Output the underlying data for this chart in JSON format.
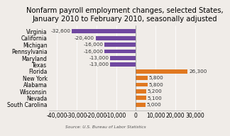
{
  "title": "Nonfarm payroll employment changes, selected States,\nJanuary 2010 to February 2010, seasonally adjusted",
  "source": "Source: U.S. Bureau of Labor Statistics",
  "categories": [
    "Virginia",
    "California",
    "Michigan",
    "Pennsylvania",
    "Maryland",
    "Texas",
    "Florida",
    "New York",
    "Alabama",
    "Wisconsin",
    "Nevada",
    "South Carolina"
  ],
  "values": [
    -32600,
    -20400,
    -16000,
    -16000,
    -13000,
    -13000,
    26300,
    5800,
    5800,
    5200,
    5100,
    5000
  ],
  "bar_colors": [
    "#7048a0",
    "#7048a0",
    "#7048a0",
    "#7048a0",
    "#7048a0",
    "#7048a0",
    "#e07820",
    "#e07820",
    "#e07820",
    "#e07820",
    "#e07820",
    "#e07820"
  ],
  "xlim": [
    -44000,
    33000
  ],
  "xticks": [
    -40000,
    -30000,
    -20000,
    -10000,
    0,
    10000,
    20000,
    30000
  ],
  "xticklabels": [
    "-40,000",
    "-30,000",
    "-20,000",
    "-10,000",
    "0",
    "10,000",
    "20,000",
    "30,000"
  ],
  "label_values": [
    "-32,600",
    "-20,400",
    "-16,000",
    "-16,000",
    "-13,000",
    "-13,000",
    "26,300",
    "5,800",
    "5,800",
    "5,200",
    "5,100",
    "5,000"
  ],
  "background_color": "#f0ece8",
  "title_fontsize": 7.2,
  "tick_fontsize": 5.5,
  "label_fontsize": 5.2
}
